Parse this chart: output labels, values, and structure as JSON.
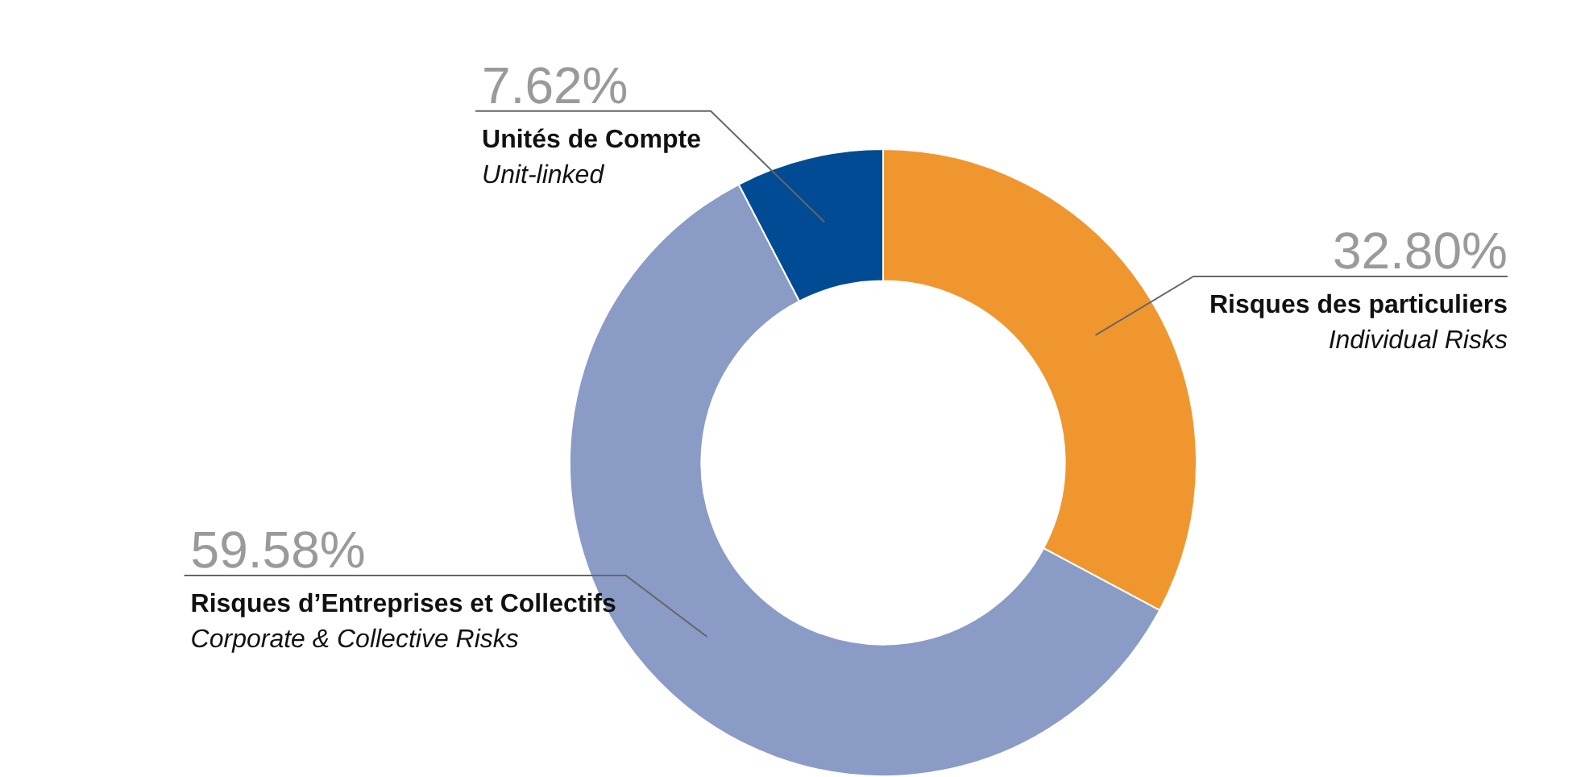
{
  "chart_data": {
    "type": "donut",
    "categories": [
      "Risques des particuliers\nIndividual Risks",
      "Risques d’Entreprises et Collectifs\nCorporate & Collective Risks",
      "Unités de Compte\nUnit-linked"
    ],
    "values": [
      32.8,
      59.58,
      7.62
    ],
    "value_labels": [
      "32.80%",
      "59.58%",
      "7.62%"
    ],
    "colors": [
      "#f0962f",
      "#8a9bc6",
      "#004b93"
    ],
    "legend": false
  }
}
